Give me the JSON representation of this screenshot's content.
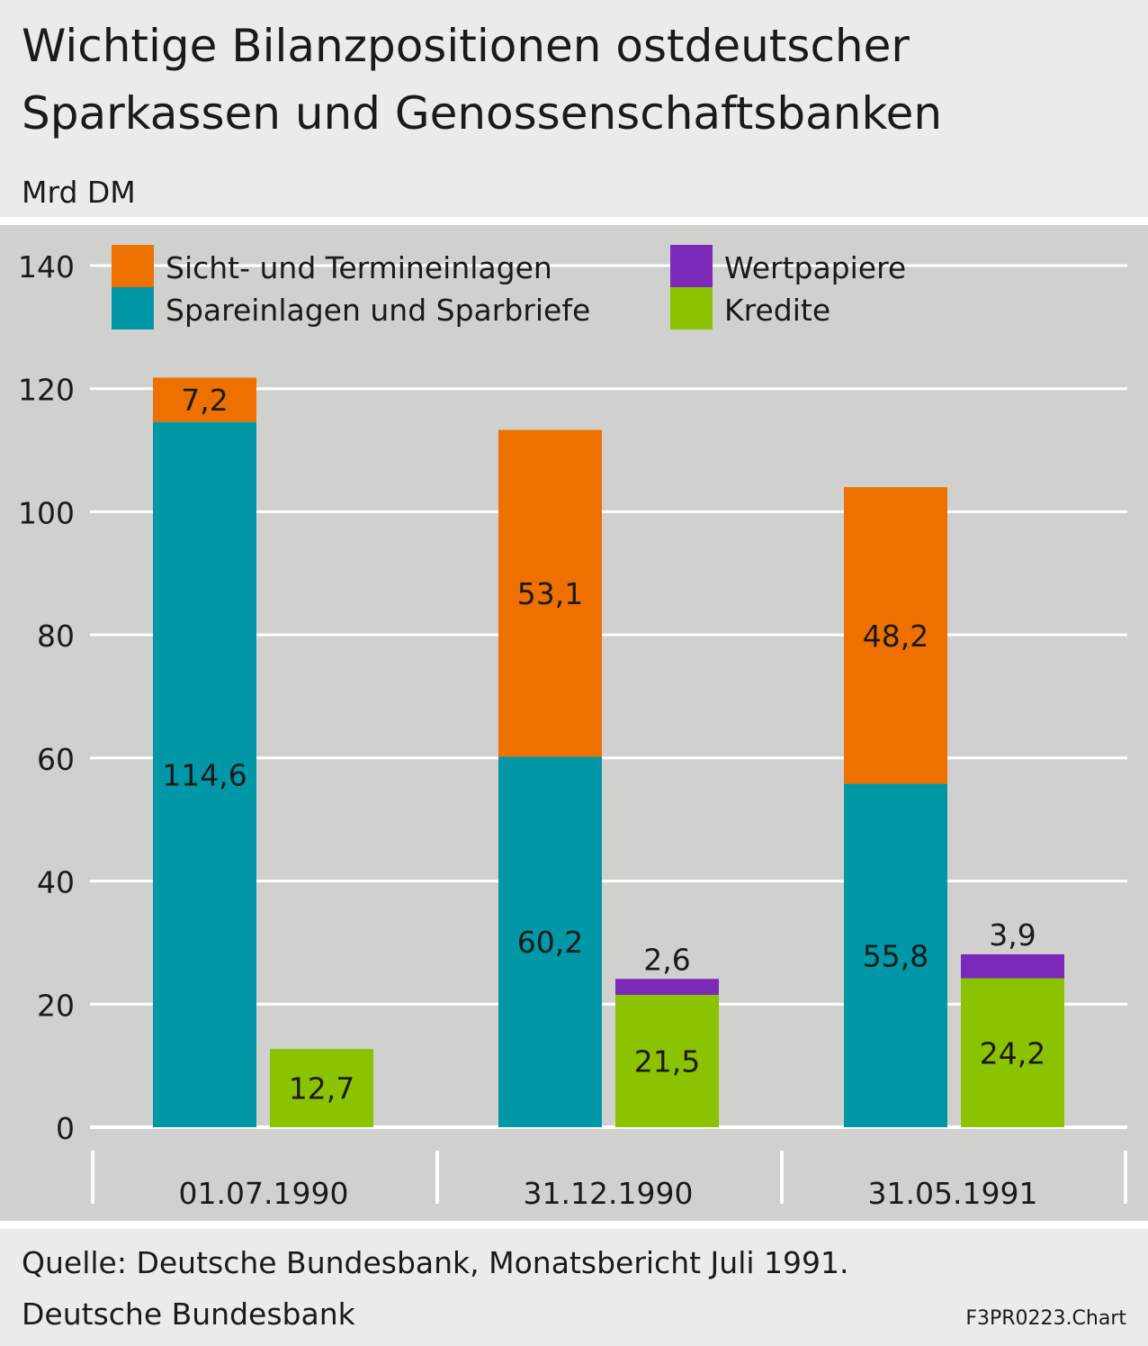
{
  "chart_data": {
    "type": "bar",
    "title_lines": [
      "Wichtige Bilanzpositionen ostdeutscher",
      "Sparkassen und Genossenschaftsbanken"
    ],
    "unit": "Mrd DM",
    "categories": [
      "01.07.1990",
      "31.12.1990",
      "31.05.1991"
    ],
    "ylim": [
      0,
      140
    ],
    "yticks": [
      "0",
      "20",
      "40",
      "60",
      "80",
      "100",
      "120",
      "140"
    ],
    "grid": true,
    "legend_position": "top",
    "stacks": [
      {
        "segments": [
          {
            "series": "Spareinlagen und Sparbriefe",
            "values": [
              114.6,
              60.2,
              55.8
            ],
            "labels": [
              "114,6",
              "60,2",
              "55,8"
            ]
          },
          {
            "series": "Sicht- und Termineinlagen",
            "values": [
              7.2,
              53.1,
              48.2
            ],
            "labels": [
              "7,2",
              "53,1",
              "48,2"
            ]
          }
        ]
      },
      {
        "segments": [
          {
            "series": "Kredite",
            "values": [
              12.7,
              21.5,
              24.2
            ],
            "labels": [
              "12,7",
              "21,5",
              "24,2"
            ]
          },
          {
            "series": "Wertpapiere",
            "values": [
              0,
              2.6,
              3.9
            ],
            "labels": [
              "",
              "2,6",
              "3,9"
            ]
          }
        ]
      }
    ],
    "legend": [
      {
        "name": "Sicht- und Termineinlagen",
        "color": "#ee7100"
      },
      {
        "name": "Wertpapiere",
        "color": "#7b29b8"
      },
      {
        "name": "Spareinlagen und Sparbriefe",
        "color": "#0097a7"
      },
      {
        "name": "Kredite",
        "color": "#8cc300"
      }
    ],
    "colors": {
      "Sicht- und Termineinlagen": "#ee7100",
      "Spareinlagen und Sparbriefe": "#0097a7",
      "Wertpapiere": "#7b29b8",
      "Kredite": "#8cc300"
    }
  },
  "footer": {
    "source": "Quelle: Deutsche Bundesbank, Monatsbericht Juli 1991.",
    "publisher": "Deutsche Bundesbank",
    "code": "F3PR0223.Chart"
  }
}
